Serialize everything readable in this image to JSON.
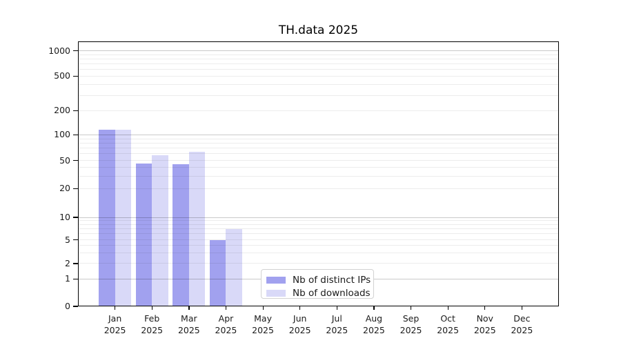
{
  "colors": {
    "background": "#ffffff",
    "axis": "#000000",
    "text": "#1a1a1a",
    "grid_minor": "#ececec",
    "grid_major": "#c9c9c9",
    "legend_border": "#d2d2d2",
    "series_ips": "#a1a1ef",
    "series_downloads": "#d9d9f8"
  },
  "chart_data": {
    "type": "bar",
    "title": "TH.data 2025",
    "year_label": "2025",
    "categories": [
      "Jan",
      "Feb",
      "Mar",
      "Apr",
      "May",
      "Jun",
      "Jul",
      "Aug",
      "Sep",
      "Oct",
      "Nov",
      "Dec"
    ],
    "series": [
      {
        "name": "Nb of distinct IPs",
        "color": "#a1a1ef",
        "values": [
          115,
          45,
          44,
          5,
          0,
          0,
          0,
          0,
          0,
          0,
          0,
          0
        ]
      },
      {
        "name": "Nb of downloads",
        "color": "#d9d9f8",
        "values": [
          116,
          58,
          63,
          7,
          0,
          0,
          0,
          0,
          0,
          0,
          0,
          0
        ]
      }
    ],
    "xlabel": "",
    "ylabel": "",
    "y_axis": {
      "scale": "symlog-like",
      "ticks": [
        0,
        1,
        2,
        5,
        10,
        20,
        50,
        100,
        200,
        500,
        1000
      ],
      "major_gridlines": [
        1,
        10,
        100,
        1000
      ],
      "range": [
        0,
        1300
      ],
      "scale_points": [
        [
          0,
          0.0
        ],
        [
          1,
          0.1035
        ],
        [
          2,
          0.1615
        ],
        [
          5,
          0.2513
        ],
        [
          10,
          0.3359
        ],
        [
          20,
          0.4445
        ],
        [
          50,
          0.55
        ],
        [
          100,
          0.6477
        ],
        [
          200,
          0.7388
        ],
        [
          500,
          0.869
        ],
        [
          1000,
          0.9648
        ]
      ]
    },
    "grid": "horizontal-only",
    "legend_position": "inside-bottom-center"
  }
}
